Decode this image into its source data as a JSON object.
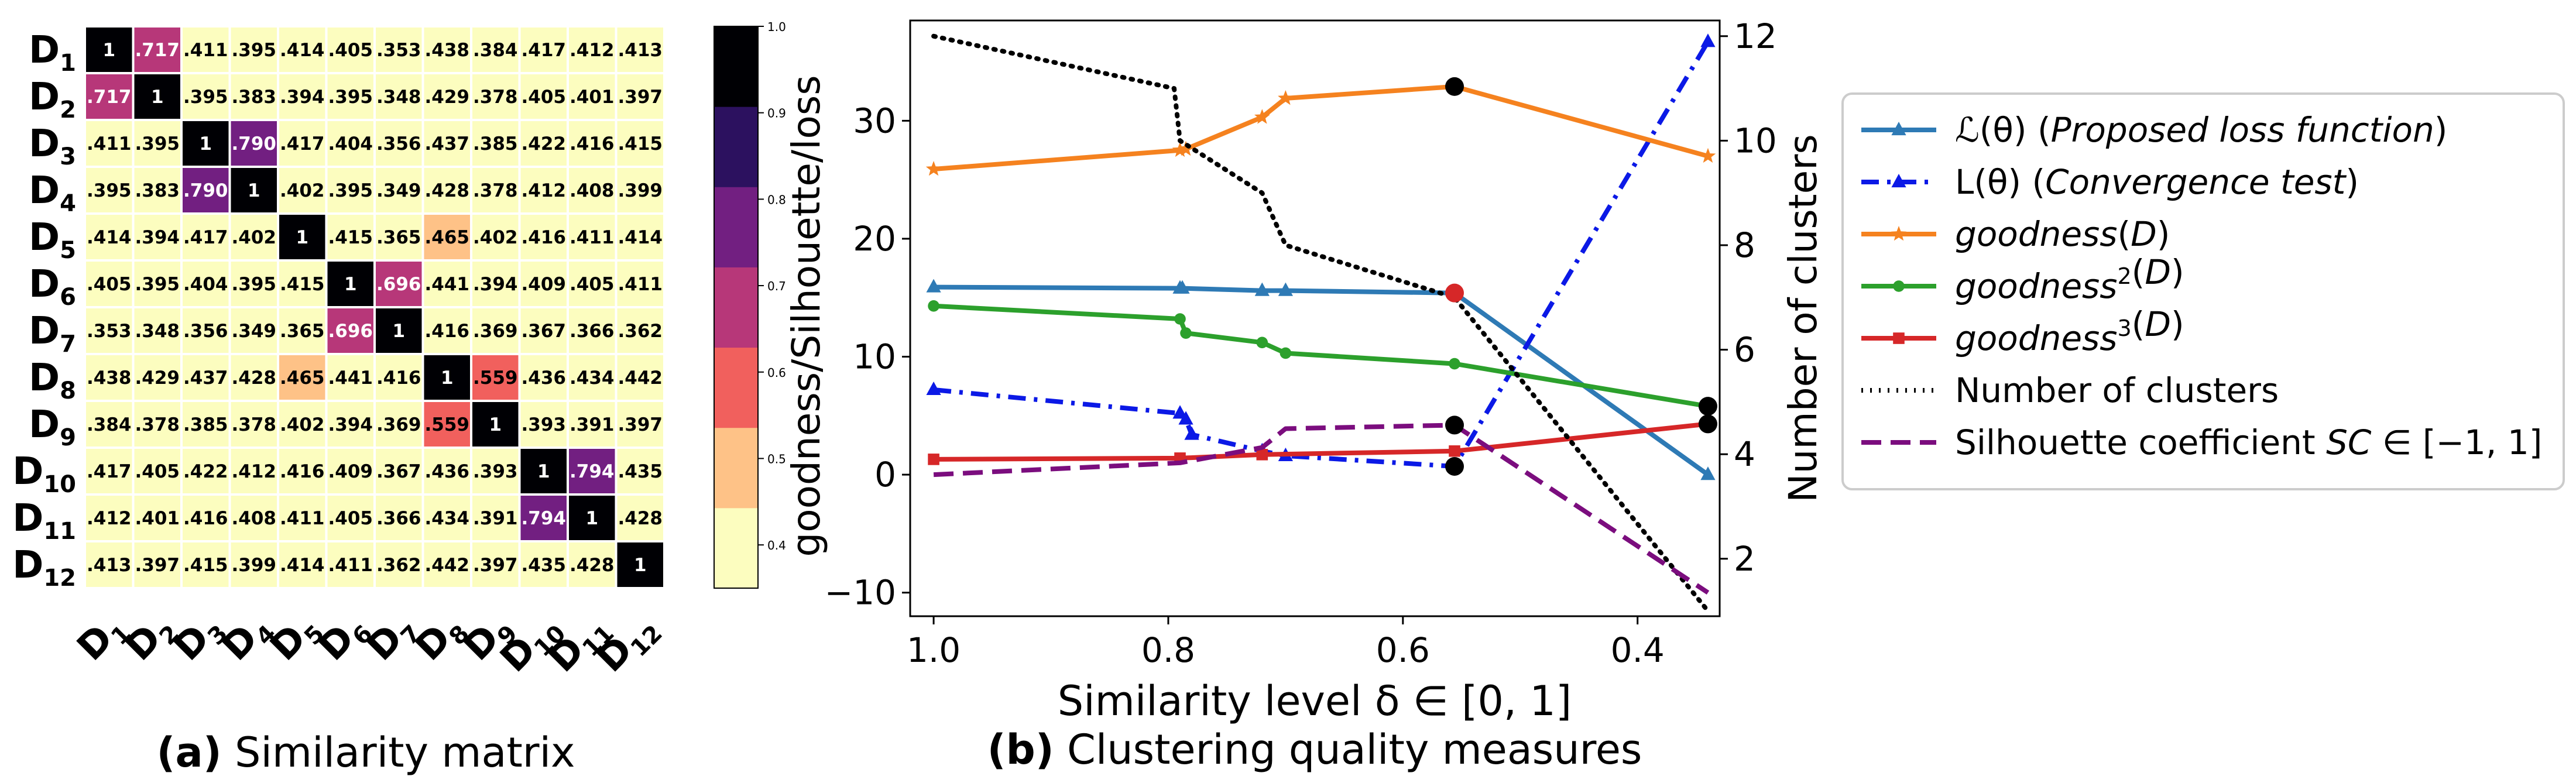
{
  "colors": {
    "heat_scale": [
      "#fcfdbf",
      "#fec287",
      "#f1605d",
      "#b73779",
      "#721f81",
      "#2c115f",
      "#000004"
    ],
    "cell_border": "#ffffff",
    "legend_border": "#cccccc",
    "dark_text": "#000000",
    "light_text": "#ffffff"
  },
  "chart_data": [
    {
      "type": "heatmap",
      "panel_label": "(a)",
      "caption": "Similarity matrix",
      "rows": [
        {
          "base": "D",
          "sub": "1"
        },
        {
          "base": "D",
          "sub": "2"
        },
        {
          "base": "D",
          "sub": "3"
        },
        {
          "base": "D",
          "sub": "4"
        },
        {
          "base": "D",
          "sub": "5"
        },
        {
          "base": "D",
          "sub": "6"
        },
        {
          "base": "D",
          "sub": "7"
        },
        {
          "base": "D",
          "sub": "8"
        },
        {
          "base": "D",
          "sub": "9"
        },
        {
          "base": "D",
          "sub": "10"
        },
        {
          "base": "D",
          "sub": "11"
        },
        {
          "base": "D",
          "sub": "12"
        }
      ],
      "values": [
        [
          1,
          0.717,
          0.411,
          0.395,
          0.414,
          0.405,
          0.353,
          0.438,
          0.384,
          0.417,
          0.412,
          0.413
        ],
        [
          0.717,
          1,
          0.395,
          0.383,
          0.394,
          0.395,
          0.348,
          0.429,
          0.378,
          0.405,
          0.401,
          0.397
        ],
        [
          0.411,
          0.395,
          1,
          0.79,
          0.417,
          0.404,
          0.356,
          0.437,
          0.385,
          0.422,
          0.416,
          0.415
        ],
        [
          0.395,
          0.383,
          0.79,
          1,
          0.402,
          0.395,
          0.349,
          0.428,
          0.378,
          0.412,
          0.408,
          0.399
        ],
        [
          0.414,
          0.394,
          0.417,
          0.402,
          1,
          0.415,
          0.365,
          0.465,
          0.402,
          0.416,
          0.411,
          0.414
        ],
        [
          0.405,
          0.395,
          0.404,
          0.395,
          0.415,
          1,
          0.696,
          0.441,
          0.394,
          0.409,
          0.405,
          0.411
        ],
        [
          0.353,
          0.348,
          0.356,
          0.349,
          0.365,
          0.696,
          1,
          0.416,
          0.369,
          0.367,
          0.366,
          0.362
        ],
        [
          0.438,
          0.429,
          0.437,
          0.428,
          0.465,
          0.441,
          0.416,
          1,
          0.559,
          0.436,
          0.434,
          0.442
        ],
        [
          0.384,
          0.378,
          0.385,
          0.378,
          0.402,
          0.394,
          0.369,
          0.559,
          1,
          0.393,
          0.391,
          0.397
        ],
        [
          0.417,
          0.405,
          0.422,
          0.412,
          0.416,
          0.409,
          0.367,
          0.436,
          0.393,
          1,
          0.794,
          0.435
        ],
        [
          0.412,
          0.401,
          0.416,
          0.408,
          0.411,
          0.405,
          0.366,
          0.434,
          0.391,
          0.794,
          1,
          0.428
        ],
        [
          0.413,
          0.397,
          0.415,
          0.399,
          0.414,
          0.411,
          0.362,
          0.442,
          0.397,
          0.435,
          0.428,
          1
        ]
      ],
      "colorbar": {
        "range": [
          0.35,
          1.0
        ],
        "ticks": [
          "0.4",
          "0.5",
          "0.6",
          "0.7",
          "0.8",
          "0.9",
          "1.0"
        ],
        "tick_values": [
          0.4,
          0.5,
          0.6,
          0.7,
          0.8,
          0.9,
          1.0
        ]
      }
    },
    {
      "type": "line",
      "panel_label": "(b)",
      "caption": "Clustering quality measures",
      "xlabel": "Similarity level δ ∈ [0, 1]",
      "ylabel": "goodness/Silhouette/loss",
      "y2label": "Number of clusters",
      "xlim": [
        1.02,
        0.33
      ],
      "ylim": [
        -12,
        38.5
      ],
      "y2lim": [
        0.9,
        12.3
      ],
      "xticks": [
        {
          "v": 1.0,
          "t": "1.0"
        },
        {
          "v": 0.8,
          "t": "0.8"
        },
        {
          "v": 0.6,
          "t": "0.6"
        },
        {
          "v": 0.4,
          "t": "0.4"
        }
      ],
      "yticks": [
        {
          "v": -10,
          "t": "−10"
        },
        {
          "v": 0,
          "t": "0"
        },
        {
          "v": 10,
          "t": "10"
        },
        {
          "v": 20,
          "t": "20"
        },
        {
          "v": 30,
          "t": "30"
        }
      ],
      "y2ticks": [
        {
          "v": 2,
          "t": "2"
        },
        {
          "v": 4,
          "t": "4"
        },
        {
          "v": 6,
          "t": "6"
        },
        {
          "v": 8,
          "t": "8"
        },
        {
          "v": 10,
          "t": "10"
        },
        {
          "v": 12,
          "t": "12"
        }
      ],
      "series": [
        {
          "name": "proposed-loss",
          "legend": [
            {
              "t": "ℒ(θ) ("
            },
            {
              "t": "Proposed loss function",
              "i": true
            },
            {
              "t": ")"
            }
          ],
          "color": "#2e7ab5",
          "dash": "",
          "marker": "triangle",
          "axis": "left",
          "x": [
            1.0,
            0.79,
            0.788,
            0.72,
            0.7,
            0.556,
            0.34
          ],
          "y": [
            15.9,
            15.8,
            15.8,
            15.6,
            15.6,
            15.4,
            0.0
          ]
        },
        {
          "name": "convergence-test",
          "legend": [
            {
              "t": "L(θ) ("
            },
            {
              "t": "Convergence test",
              "i": true
            },
            {
              "t": ")"
            }
          ],
          "color": "#0b19e6",
          "dash": "30,14,6,14",
          "marker": "triangle",
          "axis": "left",
          "x": [
            1.0,
            0.79,
            0.785,
            0.78,
            0.72,
            0.7,
            0.556,
            0.34
          ],
          "y": [
            7.2,
            5.2,
            4.7,
            3.4,
            2.0,
            1.6,
            0.7,
            36.7
          ]
        },
        {
          "name": "goodness",
          "legend": [
            {
              "t": "goodness",
              "i": true
            },
            {
              "t": "("
            },
            {
              "t": "D",
              "i": true
            },
            {
              "t": ")"
            }
          ],
          "color": "#f5821f",
          "dash": "",
          "marker": "star",
          "axis": "left",
          "x": [
            1.0,
            0.79,
            0.785,
            0.72,
            0.7,
            0.556,
            0.34
          ],
          "y": [
            25.9,
            27.5,
            27.6,
            30.3,
            31.9,
            32.9,
            27.0
          ]
        },
        {
          "name": "goodness-squared",
          "legend": [
            {
              "t": "goodness",
              "i": true
            },
            {
              "t": "2",
              "sup": true
            },
            {
              "t": "("
            },
            {
              "t": "D",
              "i": true
            },
            {
              "t": ")"
            }
          ],
          "color": "#2ca02c",
          "dash": "",
          "marker": "circle",
          "axis": "left",
          "x": [
            1.0,
            0.79,
            0.785,
            0.72,
            0.7,
            0.556,
            0.34
          ],
          "y": [
            14.3,
            13.2,
            12.0,
            11.2,
            10.3,
            9.4,
            5.8
          ]
        },
        {
          "name": "goodness-cubed",
          "legend": [
            {
              "t": "goodness",
              "i": true
            },
            {
              "t": "3",
              "sup": true
            },
            {
              "t": "("
            },
            {
              "t": "D",
              "i": true
            },
            {
              "t": ")"
            }
          ],
          "color": "#d62728",
          "dash": "",
          "marker": "square",
          "axis": "left",
          "x": [
            1.0,
            0.79,
            0.72,
            0.556,
            0.34
          ],
          "y": [
            1.3,
            1.4,
            1.7,
            2.0,
            4.3
          ]
        },
        {
          "name": "number-of-clusters",
          "legend": [
            {
              "t": "Number of clusters"
            }
          ],
          "color": "#000000",
          "dash": "3,12",
          "marker": "none",
          "axis": "right",
          "x": [
            1.0,
            0.795,
            0.79,
            0.72,
            0.7,
            0.556,
            0.34
          ],
          "y": [
            12,
            11,
            10,
            9,
            8,
            7,
            1
          ]
        },
        {
          "name": "silhouette",
          "legend": [
            {
              "t": "Silhouette coefficient "
            },
            {
              "t": "SC",
              "i": true
            },
            {
              "t": " ∈ [−1, 1]"
            }
          ],
          "color": "#7b0d7e",
          "dash": "34,16",
          "marker": "none",
          "axis": "left",
          "x": [
            1.0,
            0.79,
            0.72,
            0.7,
            0.556,
            0.34
          ],
          "y": [
            0.0,
            1.0,
            2.3,
            3.9,
            4.2,
            -10.0
          ]
        }
      ],
      "highlight_points": [
        {
          "x": 0.556,
          "y": 32.9,
          "color": "#000000"
        },
        {
          "x": 0.556,
          "y": 15.4,
          "color": "#d62728"
        },
        {
          "x": 0.556,
          "y": 4.2,
          "color": "#000000"
        },
        {
          "x": 0.556,
          "y": 0.7,
          "color": "#000000"
        },
        {
          "x": 0.34,
          "y": 5.8,
          "color": "#000000"
        },
        {
          "x": 0.34,
          "y": 4.3,
          "color": "#000000"
        }
      ]
    }
  ]
}
